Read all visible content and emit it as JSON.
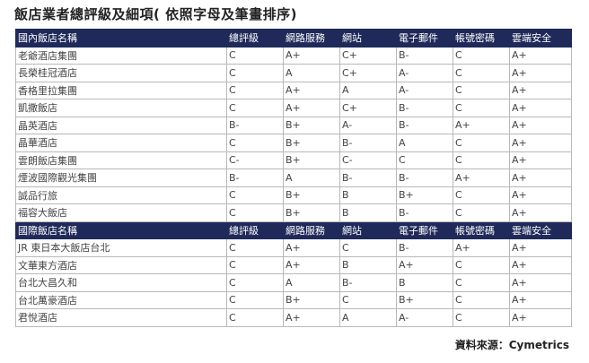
{
  "title": "飯店業者總評級及細項( 依照字母及筆畫排序)",
  "headers_domestic": [
    "國內飯店名稱",
    "總評級",
    "網路服務",
    "網站",
    "電子郵件",
    "帳號密碼",
    "雲端安全"
  ],
  "domestic_rows": [
    [
      "老爺酒店集團",
      "C",
      "A+",
      "C+",
      "B-",
      "C",
      "A+"
    ],
    [
      "長榮桂冠酒店",
      "C",
      "A",
      "C+",
      "A-",
      "C",
      "A+"
    ],
    [
      "香格里拉集團",
      "C",
      "A+",
      "A",
      "A-",
      "C",
      "A+"
    ],
    [
      "凱撒飯店",
      "C",
      "A+",
      "C+",
      "B-",
      "C",
      "A+"
    ],
    [
      "晶英酒店",
      "B-",
      "B+",
      "A-",
      "B-",
      "A+",
      "A+"
    ],
    [
      "晶華酒店",
      "C",
      "B+",
      "B-",
      "A",
      "C",
      "A+"
    ],
    [
      "雲朗飯店集團",
      "C-",
      "B+",
      "C-",
      "C",
      "C",
      "A+"
    ],
    [
      "煙波國際觀光集團",
      "B-",
      "A",
      "B-",
      "B-",
      "A+",
      "A+"
    ],
    [
      "誠品行旅",
      "C",
      "B+",
      "B",
      "B+",
      "C",
      "A+"
    ],
    [
      "福容大飯店",
      "C",
      "B+",
      "B",
      "B-",
      "C",
      "A+"
    ]
  ],
  "headers_international": [
    "國際飯店名稱",
    "總評級",
    "網路服務",
    "網站",
    "電子郵件",
    "帳號密碼",
    "雲端安全"
  ],
  "international_rows": [
    [
      "JR 東日本大飯店台北",
      "C",
      "A+",
      "C",
      "B-",
      "A+",
      "A+"
    ],
    [
      "文華東方酒店",
      "C",
      "A+",
      "B",
      "A+",
      "C",
      "A+"
    ],
    [
      "台北大昌久和",
      "C",
      "A",
      "B-",
      "B",
      "C",
      "A+"
    ],
    [
      "台北萬豪酒店",
      "C",
      "B+",
      "C",
      "B+",
      "C",
      "A+"
    ],
    [
      "君悅酒店",
      "C",
      "A+",
      "A",
      "A-",
      "C",
      "A+"
    ]
  ],
  "source": "資料來源：Cymetrics",
  "colors": {
    "header_bg": "#1f2a5a",
    "header_text": "#ffffff"
  }
}
